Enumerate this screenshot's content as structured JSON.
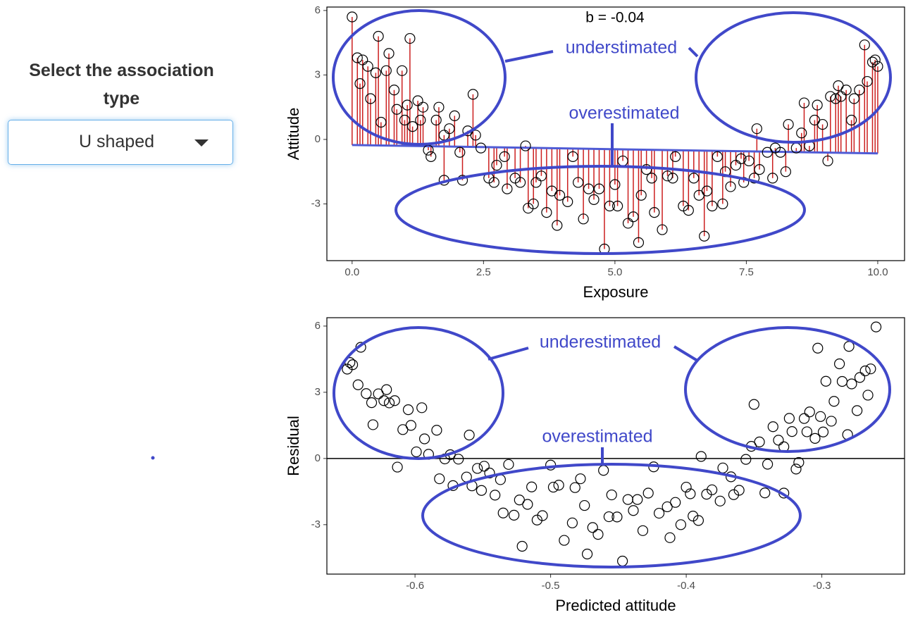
{
  "sidebar": {
    "label": "Select the association type",
    "selected": "U shaped"
  },
  "chart_data": [
    {
      "type": "scatter",
      "x_label": "Exposure",
      "y_label": "Attitude",
      "annotations": [
        "b = -0.04",
        "understimated",
        "overestimated"
      ],
      "xlim": [
        -0.48,
        10.51
      ],
      "ylim": [
        -5.64,
        6.16
      ],
      "xticks": [
        {
          "value": 0,
          "label": "0.0"
        },
        2.5,
        {
          "value": 5,
          "label": "5.0"
        },
        7.5,
        {
          "value": 10,
          "label": "10.0"
        }
      ],
      "yticks": [
        -3,
        0,
        3,
        6
      ],
      "fit": {
        "x": [
          0,
          10
        ],
        "y": [
          -0.26,
          -0.65
        ],
        "color": "#4f5bd5"
      },
      "segment_color": "#cc1f1f",
      "x": [
        0,
        0.1,
        0.15,
        0.2,
        0.3,
        0.35,
        0.45,
        0.5,
        0.55,
        0.65,
        0.7,
        0.8,
        0.85,
        0.95,
        1,
        1.05,
        1.1,
        1.15,
        1.25,
        1.3,
        1.35,
        1.45,
        1.5,
        1.6,
        1.65,
        1.75,
        1.75,
        1.85,
        1.95,
        2.05,
        2.1,
        2.2,
        2.3,
        2.35,
        2.45,
        2.6,
        2.7,
        2.75,
        2.9,
        2.95,
        3.1,
        3.2,
        3.3,
        3.35,
        3.45,
        3.5,
        3.6,
        3.7,
        3.8,
        3.9,
        3.95,
        4.1,
        4.2,
        4.3,
        4.4,
        4.5,
        4.6,
        4.7,
        4.8,
        4.9,
        5,
        5.05,
        5.15,
        5.25,
        5.35,
        5.45,
        5.5,
        5.6,
        5.7,
        5.75,
        5.9,
        6,
        6.1,
        6.15,
        6.3,
        6.4,
        6.5,
        6.6,
        6.7,
        6.75,
        6.85,
        6.95,
        7.05,
        7.1,
        7.2,
        7.3,
        7.4,
        7.45,
        7.55,
        7.65,
        7.7,
        7.75,
        7.9,
        8,
        8.05,
        8.15,
        8.25,
        8.3,
        8.45,
        8.55,
        8.6,
        8.7,
        8.8,
        8.85,
        8.95,
        9.05,
        9.1,
        9.2,
        9.25,
        9.3,
        9.4,
        9.5,
        9.55,
        9.65,
        9.75,
        9.8,
        9.9,
        9.95,
        10
      ],
      "values": [
        5.7,
        3.8,
        2.6,
        3.7,
        3.4,
        1.9,
        3.1,
        4.8,
        0.8,
        3.2,
        4,
        2.3,
        1.4,
        3.2,
        0.9,
        1.6,
        4.7,
        0.6,
        1.8,
        0.9,
        1.5,
        -0.5,
        -0.8,
        0.9,
        1.5,
        0.2,
        -1.9,
        0.5,
        1.1,
        -0.6,
        -1.9,
        0.4,
        2.1,
        0.2,
        -0.4,
        -1.8,
        -2,
        -1.2,
        -0.8,
        -2.3,
        -1.8,
        -2,
        -0.3,
        -3.2,
        -3,
        -2,
        -1.7,
        -3.4,
        -2.4,
        -4,
        -2.6,
        -2.9,
        -0.8,
        -2,
        -3.7,
        -2.3,
        -2.8,
        -2.3,
        -5.1,
        -3.1,
        -2.1,
        -3.1,
        -1,
        -3.9,
        -3.6,
        -4.8,
        -2.6,
        -1.4,
        -1.8,
        -3.4,
        -4.2,
        -1.7,
        -1.8,
        -0.8,
        -3.1,
        -3.3,
        -1.8,
        -2.6,
        -4.5,
        -2.4,
        -3.1,
        -0.8,
        -3,
        -1.5,
        -2.2,
        -1.2,
        -0.9,
        -2,
        -1,
        -1.8,
        0.5,
        -1.4,
        -0.6,
        -1.8,
        -0.4,
        -0.6,
        -1.5,
        0.7,
        -0.4,
        0.3,
        1.7,
        -0.3,
        0.9,
        1.6,
        0.7,
        -1,
        2,
        1.9,
        2.5,
        2,
        2.3,
        0.9,
        1.9,
        2.3,
        4.4,
        2.7,
        3.6,
        3.7,
        3.4
      ]
    },
    {
      "type": "scatter",
      "x_label": "Predicted attitude",
      "y_label": "Residual",
      "annotations": [
        "underestimated",
        "overestimated"
      ],
      "xlim": [
        -0.665,
        -0.239
      ],
      "ylim": [
        -5.24,
        6.38
      ],
      "xticks": [
        -0.6,
        -0.5,
        -0.4,
        -0.3
      ],
      "yticks": [
        -3,
        0,
        3,
        6
      ],
      "hline": 0,
      "x": [
        -0.26,
        -0.264,
        -0.266,
        -0.268,
        -0.272,
        -0.274,
        -0.278,
        -0.28,
        -0.281,
        -0.285,
        -0.287,
        -0.291,
        -0.293,
        -0.297,
        -0.299,
        -0.301,
        -0.303,
        -0.305,
        -0.309,
        -0.311,
        -0.313,
        -0.317,
        -0.319,
        -0.322,
        -0.324,
        -0.328,
        -0.328,
        -0.332,
        -0.336,
        -0.34,
        -0.342,
        -0.346,
        -0.35,
        -0.352,
        -0.356,
        -0.361,
        -0.365,
        -0.367,
        -0.373,
        -0.375,
        -0.381,
        -0.385,
        -0.389,
        -0.391,
        -0.395,
        -0.397,
        -0.4,
        -0.404,
        -0.408,
        -0.412,
        -0.414,
        -0.42,
        -0.424,
        -0.428,
        -0.432,
        -0.436,
        -0.439,
        -0.443,
        -0.447,
        -0.451,
        -0.455,
        -0.457,
        -0.461,
        -0.465,
        -0.469,
        -0.473,
        -0.475,
        -0.478,
        -0.482,
        -0.484,
        -0.49,
        -0.494,
        -0.498,
        -0.5,
        -0.506,
        -0.51,
        -0.514,
        -0.517,
        -0.521,
        -0.523,
        -0.527,
        -0.531,
        -0.535,
        -0.537,
        -0.541,
        -0.545,
        -0.549,
        -0.551,
        -0.554,
        -0.558,
        -0.56,
        -0.562,
        -0.568,
        -0.572,
        -0.574,
        -0.578,
        -0.582,
        -0.584,
        -0.59,
        -0.593,
        -0.595,
        -0.599,
        -0.603,
        -0.605,
        -0.609,
        -0.613,
        -0.615,
        -0.619,
        -0.621,
        -0.623,
        -0.627,
        -0.631,
        -0.632,
        -0.636,
        -0.64,
        -0.642,
        -0.646,
        -0.648,
        -0.65
      ],
      "values": [
        5.96,
        4.06,
        2.87,
        3.97,
        3.67,
        2.17,
        3.38,
        5.08,
        1.08,
        3.49,
        4.29,
        2.59,
        1.69,
        3.5,
        1.2,
        1.9,
        5,
        0.91,
        2.11,
        1.21,
        1.81,
        -0.18,
        -0.48,
        1.22,
        1.82,
        0.53,
        -1.57,
        0.83,
        1.44,
        -0.26,
        -1.56,
        0.75,
        2.45,
        0.55,
        -0.04,
        -1.44,
        -1.64,
        -0.83,
        -0.43,
        -1.93,
        -1.42,
        -1.62,
        0.09,
        -2.81,
        -2.61,
        -1.6,
        -1.3,
        -3,
        -1.99,
        -3.59,
        -2.19,
        -2.48,
        -0.38,
        -1.57,
        -3.27,
        -1.86,
        -2.36,
        -1.86,
        -4.65,
        -2.65,
        -1.65,
        -2.64,
        -0.54,
        -3.44,
        -3.13,
        -4.33,
        -2.13,
        -0.92,
        -1.32,
        -2.92,
        -3.71,
        -1.21,
        -1.3,
        -0.3,
        -2.59,
        -2.79,
        -1.29,
        -2.08,
        -3.98,
        -1.88,
        -2.57,
        -0.27,
        -2.47,
        -0.96,
        -1.66,
        -0.66,
        -0.35,
        -1.45,
        -0.45,
        -1.24,
        1.06,
        -0.84,
        -0.03,
        -1.23,
        0.17,
        -0.02,
        -0.92,
        1.28,
        0.19,
        0.89,
        2.3,
        0.3,
        1.5,
        2.21,
        1.31,
        -0.39,
        2.62,
        2.52,
        3.12,
        2.62,
        2.93,
        1.53,
        2.53,
        2.94,
        5.04,
        3.34,
        4.25,
        4.35,
        4.05
      ]
    }
  ]
}
